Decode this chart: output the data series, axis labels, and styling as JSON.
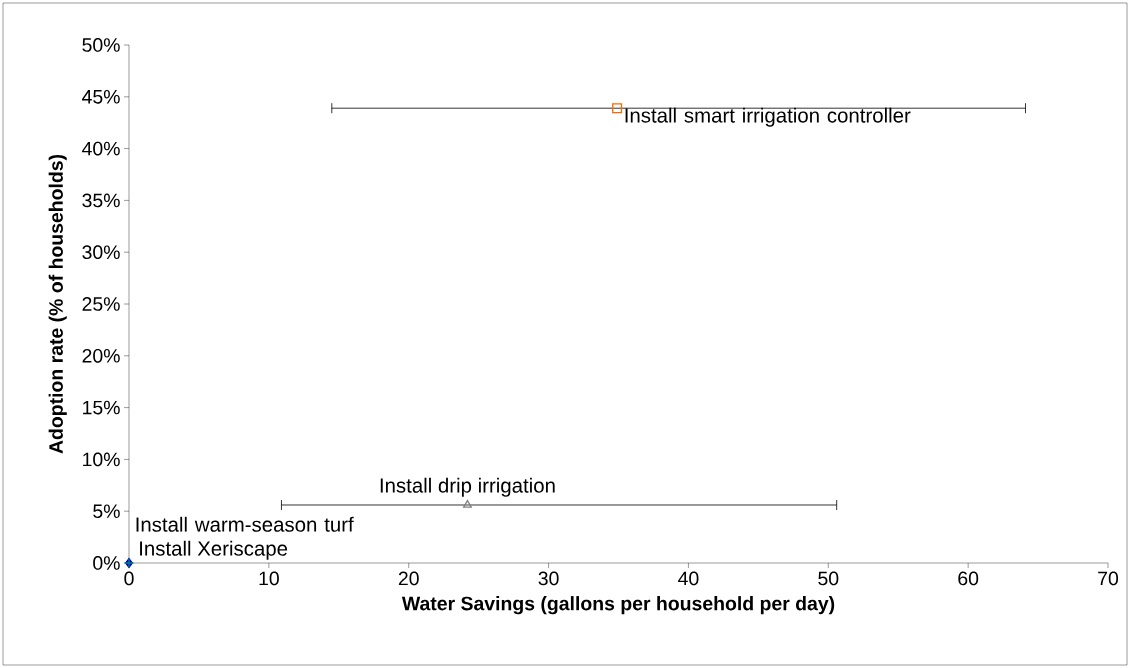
{
  "chart_data": {
    "type": "scatter",
    "xlabel": "Water Savings (gallons per household per day)",
    "ylabel": "Adoption rate (% of households)",
    "xlim": [
      0,
      70
    ],
    "xticks": [
      0,
      10,
      20,
      30,
      40,
      50,
      60,
      70
    ],
    "ylim": [
      0,
      50
    ],
    "yticks": [
      {
        "value": 0,
        "label": "0%"
      },
      {
        "value": 5,
        "label": "5%"
      },
      {
        "value": 10,
        "label": "10%"
      },
      {
        "value": 15,
        "label": "15%"
      },
      {
        "value": 20,
        "label": "20%"
      },
      {
        "value": 25,
        "label": "25%"
      },
      {
        "value": 30,
        "label": "30%"
      },
      {
        "value": 35,
        "label": "35%"
      },
      {
        "value": 40,
        "label": "40%"
      },
      {
        "value": 45,
        "label": "45%"
      },
      {
        "value": 50,
        "label": "50%"
      }
    ],
    "grid": false,
    "legend": false,
    "series": [
      {
        "name": "Install Xeriscape",
        "color": "#0000cc",
        "marker": "diamond",
        "x": [
          0
        ],
        "values": [
          0
        ]
      },
      {
        "name": "Install warm-season turf",
        "color": "#008080",
        "marker": "cross",
        "x": [
          0
        ],
        "values": [
          0
        ]
      },
      {
        "name": "Install drip irrigation",
        "color": "#808080",
        "marker": "triangle",
        "x": [
          24.2
        ],
        "values": [
          5.6
        ],
        "xerrors": [
          [
            10.9,
            50.6
          ]
        ]
      },
      {
        "name": "Install smart irrigation controller",
        "color": "#ff6600",
        "marker": "square",
        "x": [
          34.9
        ],
        "values": [
          43.9
        ],
        "xerrors": [
          [
            14.5,
            64.1
          ]
        ]
      }
    ]
  }
}
